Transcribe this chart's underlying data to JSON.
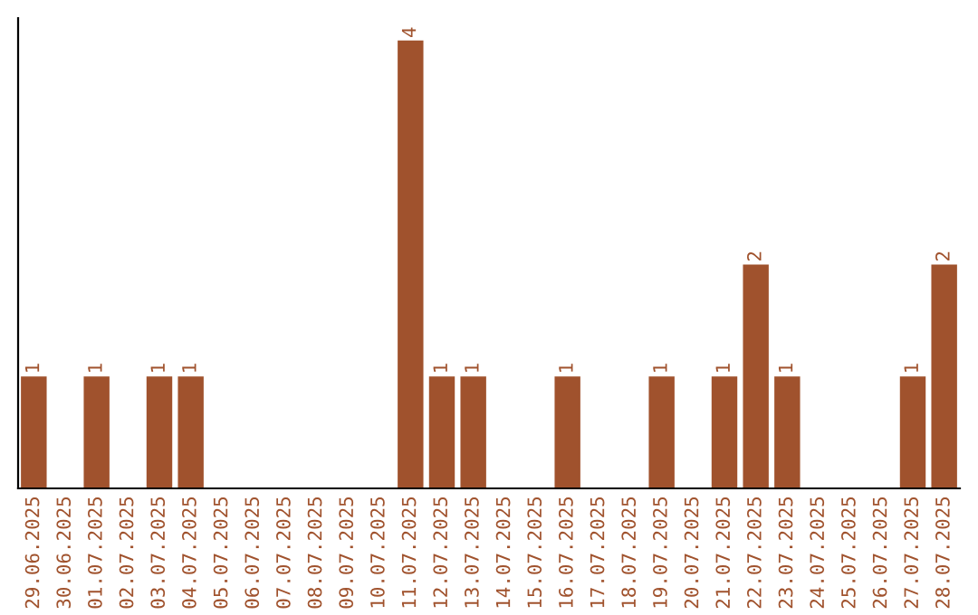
{
  "chart_data": {
    "type": "bar",
    "categories": [
      "29.06.2025",
      "30.06.2025",
      "01.07.2025",
      "02.07.2025",
      "03.07.2025",
      "04.07.2025",
      "05.07.2025",
      "06.07.2025",
      "07.07.2025",
      "08.07.2025",
      "09.07.2025",
      "10.07.2025",
      "11.07.2025",
      "12.07.2025",
      "13.07.2025",
      "14.07.2025",
      "15.07.2025",
      "16.07.2025",
      "17.07.2025",
      "18.07.2025",
      "19.07.2025",
      "20.07.2025",
      "21.07.2025",
      "22.07.2025",
      "23.07.2025",
      "24.07.2025",
      "25.07.2025",
      "26.07.2025",
      "27.07.2025",
      "28.07.2025"
    ],
    "values": [
      1,
      0,
      1,
      0,
      1,
      1,
      0,
      0,
      0,
      0,
      0,
      0,
      4,
      1,
      1,
      0,
      0,
      1,
      0,
      0,
      1,
      0,
      1,
      2,
      1,
      0,
      0,
      0,
      1,
      2
    ],
    "value_labels": [
      "1",
      null,
      "1",
      null,
      "1",
      "1",
      null,
      null,
      null,
      null,
      null,
      null,
      "4",
      "1",
      "1",
      null,
      null,
      "1",
      null,
      null,
      "1",
      null,
      "1",
      "2",
      "1",
      null,
      null,
      null,
      "1",
      "2"
    ],
    "color": "#a0522d",
    "ylim": [
      0,
      4.2
    ],
    "tick_labels": "x",
    "grid": false,
    "legend": false
  }
}
